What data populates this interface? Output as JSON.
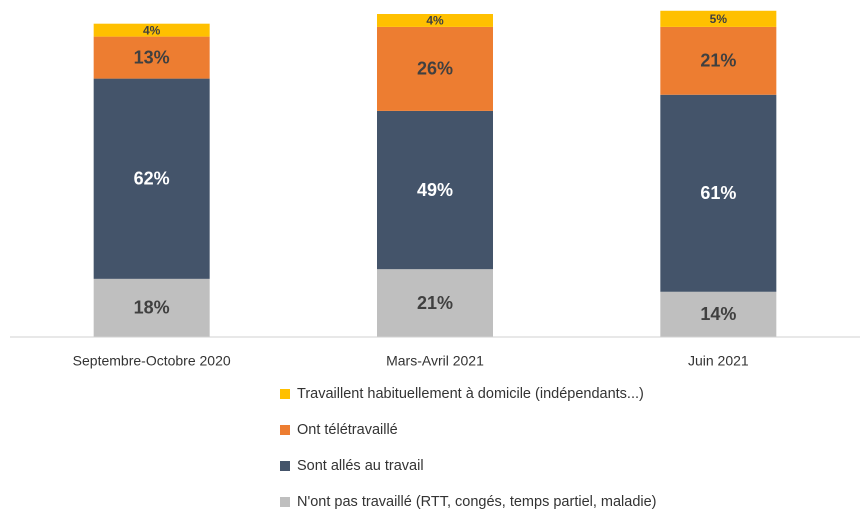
{
  "chart_data": {
    "type": "stacked_bar",
    "categories": [
      "Septembre-Octobre 2020",
      "Mars-Avril 2021",
      "Juin 2021"
    ],
    "ylim": [
      0,
      100
    ],
    "series": [
      {
        "name": "N'ont pas travaillé (RTT, congés, temps partiel, maladie)",
        "color": "#bfbfbf",
        "values": [
          18,
          21,
          14
        ],
        "value_labels": [
          "18%",
          "21%",
          "14%"
        ]
      },
      {
        "name": "Sont allés au travail",
        "color": "#44546a",
        "values": [
          62,
          49,
          61
        ],
        "value_labels": [
          "62%",
          "49%",
          "61%"
        ]
      },
      {
        "name": "Ont télétravaillé",
        "color": "#ed7d31",
        "values": [
          13,
          26,
          21
        ],
        "value_labels": [
          "13%",
          "26%",
          "21%"
        ]
      },
      {
        "name": "Travaillent habituellement à domicile (indépendants...)",
        "color": "#ffc000",
        "values": [
          4,
          4,
          5
        ],
        "value_labels": [
          "4%",
          "4%",
          "5%"
        ]
      }
    ]
  }
}
